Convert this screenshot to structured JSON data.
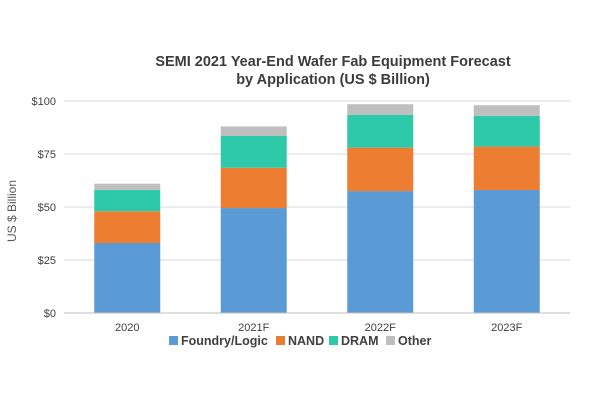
{
  "chart_data": {
    "type": "bar",
    "stacked": true,
    "title": "SEMI 2021 Year-End Wafer Fab Equipment Forecast",
    "subtitle": "by Application (US $ Billion)",
    "xlabel": "",
    "ylabel": "US $ Billion",
    "ylim": [
      0,
      100
    ],
    "ytick_values": [
      0,
      25,
      50,
      75,
      100
    ],
    "ytick_labels": [
      "$0",
      "$25",
      "$50",
      "$75",
      "$100"
    ],
    "categories": [
      "2020",
      "2021F",
      "2022F",
      "2023F"
    ],
    "series": [
      {
        "name": "Foundry/Logic",
        "color": "#5b9bd5",
        "values": [
          33,
          49.5,
          57.5,
          58
        ]
      },
      {
        "name": "NAND",
        "color": "#ed7d31",
        "values": [
          15,
          19,
          20.5,
          20.5
        ]
      },
      {
        "name": "DRAM",
        "color": "#2dc9a8",
        "values": [
          10,
          15,
          15.5,
          14.5
        ]
      },
      {
        "name": "Other",
        "color": "#bfbfbf",
        "values": [
          3,
          4.5,
          5,
          5
        ]
      }
    ],
    "grid": true,
    "legend_position": "bottom"
  }
}
